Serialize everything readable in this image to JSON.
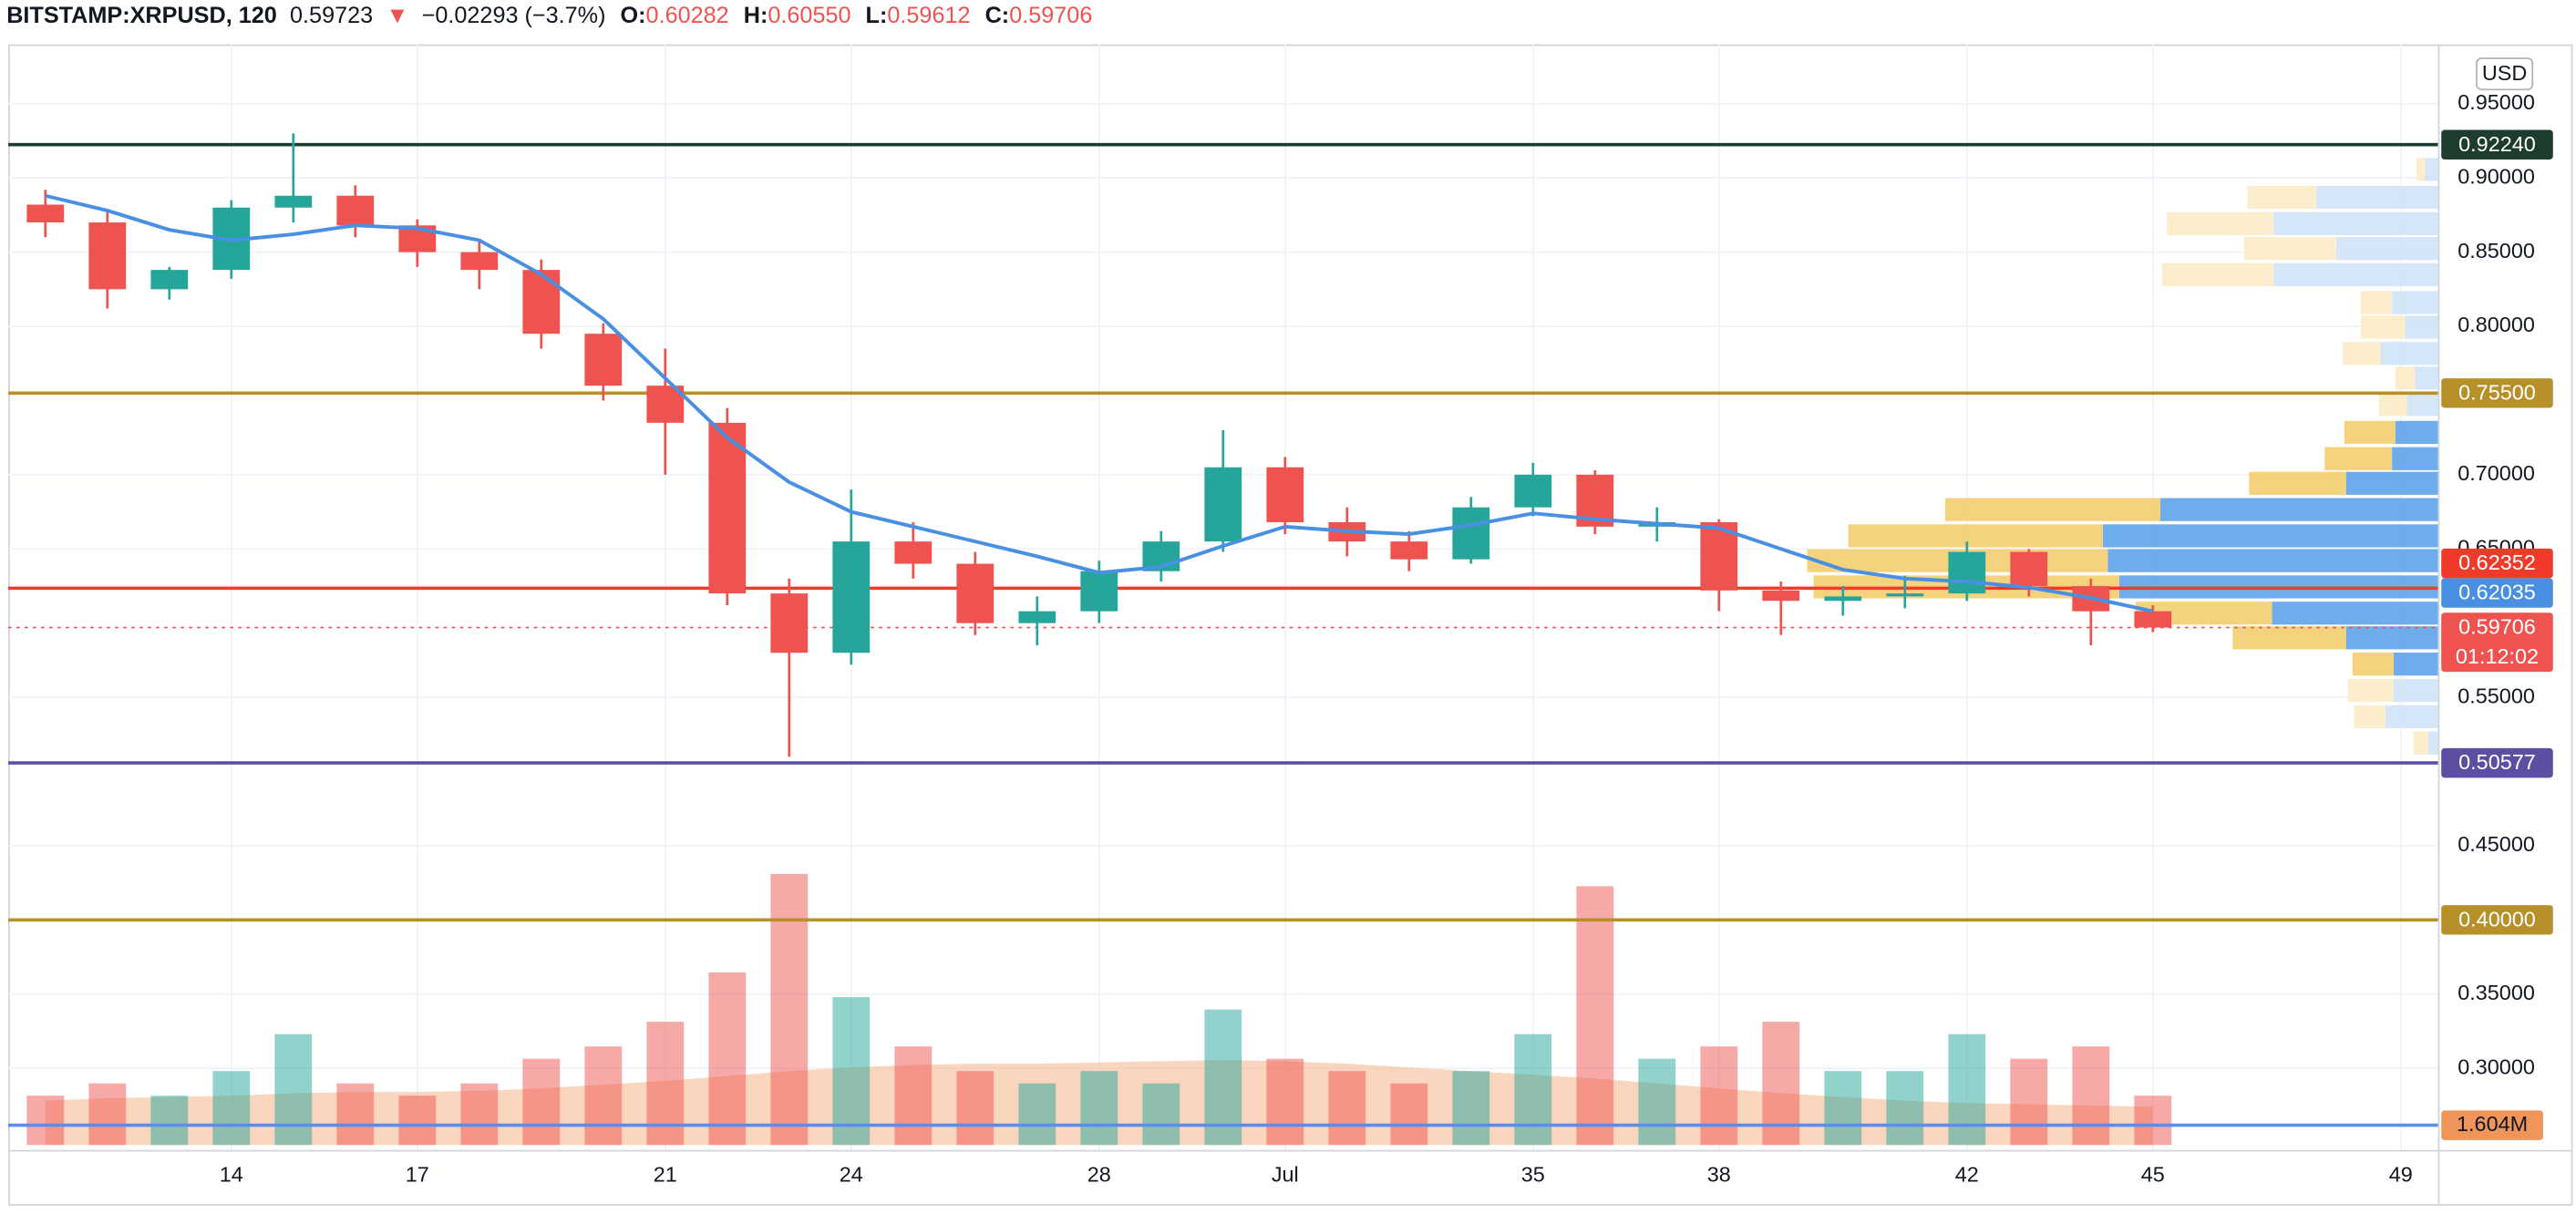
{
  "chart_data": {
    "type": "candlestick",
    "header": {
      "symbol": "BITSTAMP:XRPUSD, 120",
      "last": "0.59723",
      "arrow": "▼",
      "change": "−0.02293 (−3.7%)",
      "ohlc": [
        {
          "key": "O:",
          "value": "0.60282"
        },
        {
          "key": "H:",
          "value": "0.60550"
        },
        {
          "key": "L:",
          "value": "0.59612"
        },
        {
          "key": "C:",
          "value": "0.59706"
        }
      ]
    },
    "currency": "USD",
    "xlim": [
      10.4,
      49.6
    ],
    "xticks": [
      14,
      17,
      21,
      24,
      28,
      {
        "value": 31,
        "label": "Jul"
      },
      35,
      38,
      42,
      45,
      49
    ],
    "ylim": [
      0.245,
      0.99
    ],
    "yticks": [
      {
        "value": 0.95,
        "label": "0.95000"
      },
      {
        "value": 0.9,
        "label": "0.90000"
      },
      {
        "value": 0.85,
        "label": "0.85000"
      },
      {
        "value": 0.8,
        "label": "0.80000"
      },
      {
        "value": 0.7,
        "label": "0.70000"
      },
      {
        "value": 0.65,
        "label": "0.65000"
      },
      {
        "value": 0.55,
        "label": "0.55000"
      },
      {
        "value": 0.45,
        "label": "0.45000"
      },
      {
        "value": 0.35,
        "label": "0.35000"
      },
      {
        "value": 0.3,
        "label": "0.30000"
      }
    ],
    "grid": true,
    "up_color": "#26a69a",
    "down_color": "#ef5350",
    "x": [
      11,
      12,
      13,
      14,
      15,
      16,
      17,
      18,
      19,
      20,
      21,
      22,
      23,
      24,
      25,
      26,
      27,
      28,
      29,
      30,
      31,
      32,
      33,
      34,
      35,
      36,
      37,
      38,
      39,
      40,
      41,
      42,
      43,
      44,
      45
    ],
    "open": [
      0.882,
      0.87,
      0.825,
      0.838,
      0.88,
      0.888,
      0.868,
      0.85,
      0.838,
      0.795,
      0.76,
      0.735,
      0.62,
      0.58,
      0.655,
      0.64,
      0.6,
      0.608,
      0.635,
      0.655,
      0.705,
      0.668,
      0.655,
      0.643,
      0.678,
      0.7,
      0.665,
      0.668,
      0.622,
      0.615,
      0.618,
      0.62,
      0.648,
      0.625,
      0.608
    ],
    "high": [
      0.892,
      0.878,
      0.84,
      0.885,
      0.93,
      0.895,
      0.872,
      0.858,
      0.845,
      0.802,
      0.785,
      0.745,
      0.63,
      0.69,
      0.668,
      0.648,
      0.618,
      0.642,
      0.662,
      0.73,
      0.712,
      0.678,
      0.662,
      0.685,
      0.708,
      0.703,
      0.678,
      0.67,
      0.628,
      0.625,
      0.632,
      0.655,
      0.65,
      0.63,
      0.612
    ],
    "low": [
      0.86,
      0.812,
      0.818,
      0.832,
      0.87,
      0.86,
      0.84,
      0.825,
      0.785,
      0.75,
      0.7,
      0.612,
      0.51,
      0.572,
      0.63,
      0.592,
      0.585,
      0.6,
      0.628,
      0.648,
      0.66,
      0.645,
      0.635,
      0.64,
      0.672,
      0.66,
      0.655,
      0.608,
      0.592,
      0.605,
      0.61,
      0.615,
      0.618,
      0.585,
      0.594
    ],
    "close": [
      0.87,
      0.825,
      0.838,
      0.88,
      0.888,
      0.868,
      0.85,
      0.838,
      0.795,
      0.76,
      0.735,
      0.62,
      0.58,
      0.655,
      0.64,
      0.6,
      0.608,
      0.635,
      0.655,
      0.705,
      0.668,
      0.655,
      0.643,
      0.678,
      0.7,
      0.665,
      0.668,
      0.622,
      0.615,
      0.618,
      0.62,
      0.648,
      0.625,
      0.608,
      0.597
    ],
    "ma": {
      "color": "#4a90e2",
      "values": [
        0.888,
        0.878,
        0.865,
        0.858,
        0.862,
        0.868,
        0.866,
        0.858,
        0.835,
        0.805,
        0.765,
        0.725,
        0.695,
        0.675,
        0.665,
        0.655,
        0.645,
        0.634,
        0.638,
        0.652,
        0.665,
        0.662,
        0.66,
        0.666,
        0.674,
        0.67,
        0.667,
        0.664,
        0.65,
        0.636,
        0.63,
        0.628,
        0.624,
        0.617,
        0.608
      ]
    },
    "vlim": [
      0,
      24
    ],
    "volume": [
      4,
      5,
      4,
      6,
      9,
      5,
      4,
      5,
      7,
      8,
      10,
      14,
      22,
      12,
      8,
      6,
      5,
      6,
      5,
      11,
      7,
      6,
      5,
      6,
      9,
      21,
      7,
      8,
      10,
      6,
      6,
      9,
      7,
      8,
      4
    ],
    "volume_ma": {
      "color": "#f7b58b",
      "values": [
        3.6,
        3.8,
        3.9,
        4.0,
        4.2,
        4.3,
        4.3,
        4.4,
        4.6,
        4.9,
        5.2,
        5.6,
        6.0,
        6.3,
        6.5,
        6.6,
        6.6,
        6.7,
        6.8,
        6.9,
        6.8,
        6.6,
        6.3,
        6.0,
        5.7,
        5.4,
        5.0,
        4.6,
        4.2,
        3.9,
        3.6,
        3.4,
        3.3,
        3.2,
        3.1
      ]
    },
    "volume_level": {
      "value": 1.604,
      "label": "1.604M",
      "color": "#f0955a",
      "line_color": "#5b8def"
    },
    "levels": [
      {
        "value": 0.9224,
        "label": "0.92240",
        "color": "#1e3d2f",
        "line": "solid"
      },
      {
        "value": 0.755,
        "label": "0.75500",
        "color": "#b8902a",
        "line": "solid"
      },
      {
        "value": 0.62352,
        "label": "0.62352",
        "color": "#f23a2a",
        "line": "solid"
      },
      {
        "value": 0.62035,
        "label": "0.62035",
        "color": "#4a90e2",
        "line": "none"
      },
      {
        "value": 0.59706,
        "label": "0.59706",
        "color": "#ef5350",
        "line": "dotted",
        "countdown": "01:12:02"
      },
      {
        "value": 0.50577,
        "label": "0.50577",
        "color": "#5b4ea3",
        "line": "solid"
      },
      {
        "value": 0.4,
        "label": "0.40000",
        "color": "#b8902a",
        "line": "solid"
      }
    ],
    "profile": {
      "prices": [
        0.9057,
        0.8869,
        0.8692,
        0.8525,
        0.8348,
        0.816,
        0.7994,
        0.7817,
        0.7651,
        0.7473,
        0.7285,
        0.7108,
        0.6942,
        0.6765,
        0.6588,
        0.6421,
        0.6244,
        0.6067,
        0.5901,
        0.5724,
        0.5546,
        0.5369,
        0.5192
      ],
      "up": [
        8,
        74,
        100,
        62,
        100,
        28,
        20,
        35,
        14,
        19,
        26,
        28,
        56,
        169,
        204,
        201,
        194,
        101,
        56,
        27,
        27,
        32,
        6
      ],
      "down": [
        5,
        42,
        65,
        56,
        68,
        19,
        27,
        23,
        12,
        17,
        31,
        41,
        59,
        131,
        155,
        183,
        186,
        83,
        69,
        25,
        28,
        19,
        9
      ],
      "value_area": [
        0.5724,
        0.7285
      ],
      "up_color": "#5ea3ea",
      "down_color": "#f3cd70",
      "up_color_outside": "#cfe3f7",
      "down_color_outside": "#fcecc6"
    }
  }
}
